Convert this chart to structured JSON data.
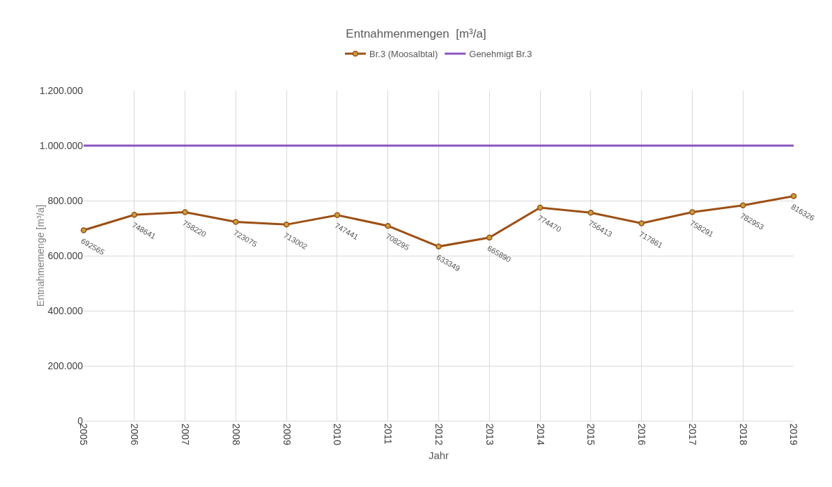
{
  "chart_data": {
    "type": "line",
    "title": "Entnahmenmengen  [m³/a]",
    "xlabel": "Jahr",
    "ylabel": "Entnahmemenge [m³/a]",
    "categories": [
      "2005",
      "2006",
      "2007",
      "2008",
      "2009",
      "2010",
      "2011",
      "2012",
      "2013",
      "2014",
      "2015",
      "2016",
      "2017",
      "2018",
      "2019"
    ],
    "series": [
      {
        "name": "Br.3 (Moosalbtal)",
        "color": "#9c4f14",
        "marker": "circle",
        "values": [
          692565,
          748641,
          758220,
          723075,
          713002,
          747441,
          708295,
          633349,
          665890,
          774470,
          756413,
          717861,
          758291,
          782953,
          816326
        ],
        "value_labels": [
          "692565",
          "748641",
          "758220",
          "723075",
          "713002",
          "747441",
          "708295",
          "633349",
          "665890",
          "774470",
          "756413",
          "717861",
          "758291",
          "782953",
          "816326"
        ]
      },
      {
        "name": "Genehmigt Br.3",
        "color": "#8b55c0",
        "marker": "none",
        "values": [
          1000000,
          1000000,
          1000000,
          1000000,
          1000000,
          1000000,
          1000000,
          1000000,
          1000000,
          1000000,
          1000000,
          1000000,
          1000000,
          1000000,
          1000000
        ]
      }
    ],
    "ylim": [
      0,
      1200000
    ],
    "yticks": [
      {
        "value": 0,
        "label": "0"
      },
      {
        "value": 200000,
        "label": "200.000"
      },
      {
        "value": 400000,
        "label": "400.000"
      },
      {
        "value": 600000,
        "label": "600.000"
      },
      {
        "value": 800000,
        "label": "800.000"
      },
      {
        "value": 1000000,
        "label": "1.000.000"
      },
      {
        "value": 1200000,
        "label": "1.200.000"
      }
    ],
    "grid": true,
    "legend": "top",
    "line_style": "solid"
  }
}
